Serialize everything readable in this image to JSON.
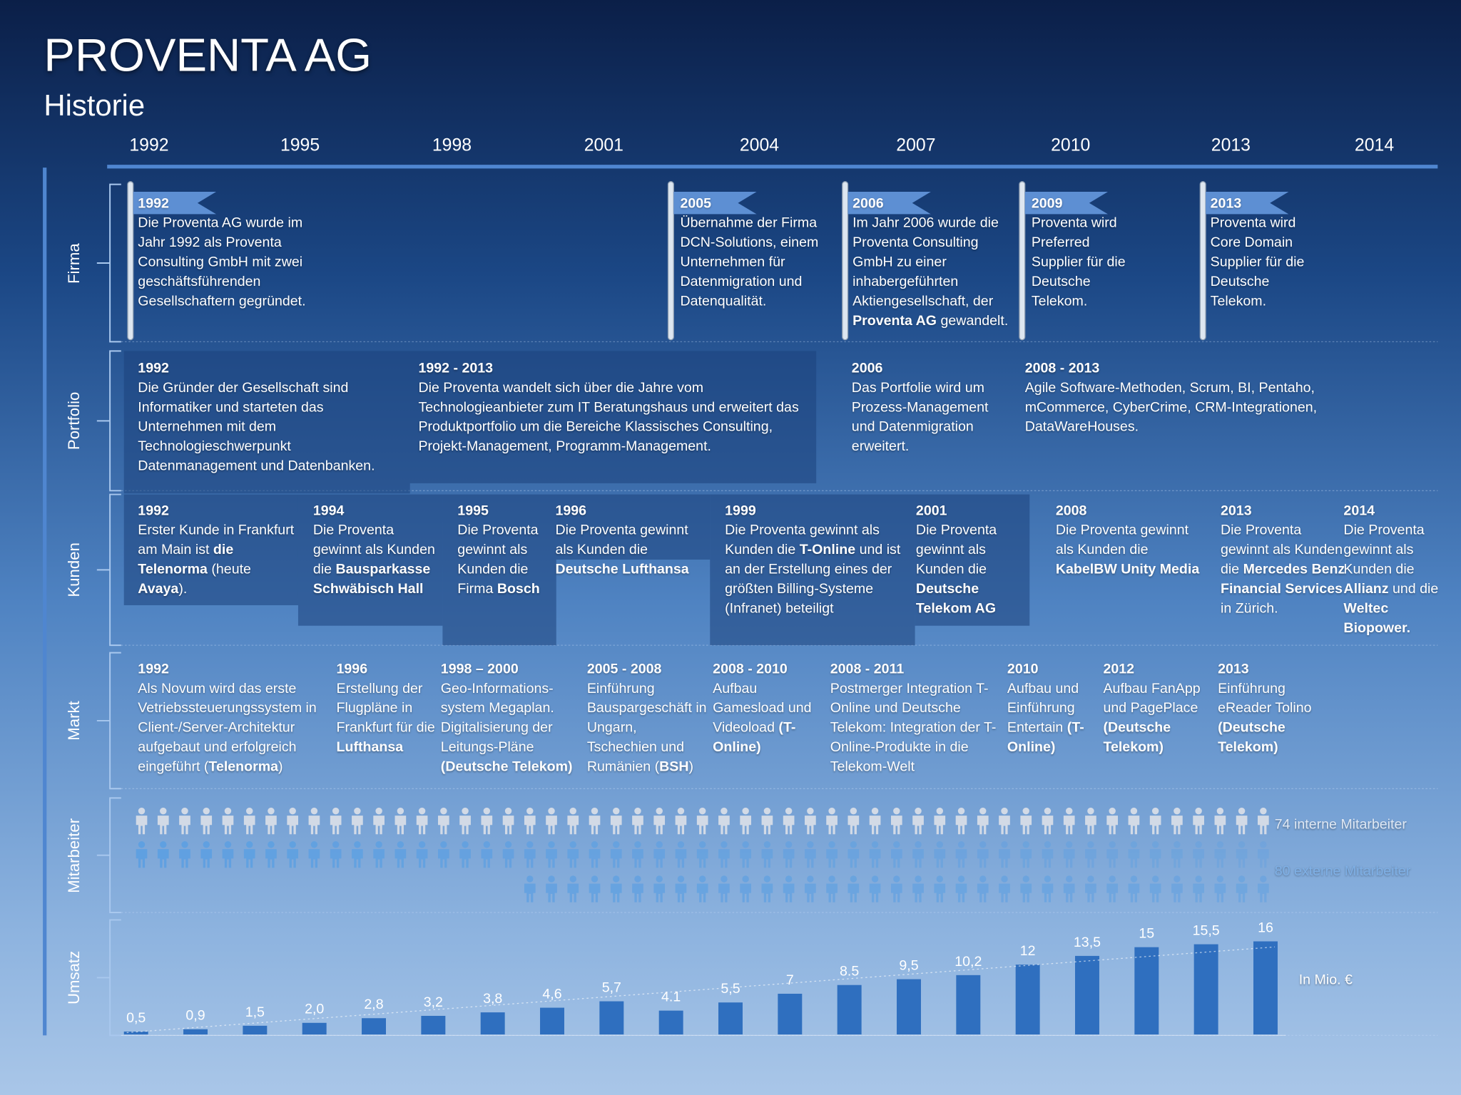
{
  "header": {
    "title": "PROVENTA AG",
    "subtitle": "Historie"
  },
  "years": [
    "1992",
    "1995",
    "1998",
    "2001",
    "2004",
    "2007",
    "2010",
    "2013",
    "2014"
  ],
  "sections": [
    {
      "label": "Firma",
      "entries": [
        {
          "year": "1992",
          "parts": [
            "Die Proventa AG wurde im Jahr 1992 als Proventa Consulting GmbH mit zwei geschäftsführenden Gesellschaftern gegründet."
          ]
        },
        {
          "year": "2005",
          "parts": [
            "Übernahme der Firma DCN-Solutions, einem Unternehmen für Datenmigration und Datenqualität."
          ]
        },
        {
          "year": "2006",
          "parts": [
            "Im Jahr 2006 wurde die Proventa Consulting GmbH zu einer inhabergeführten Aktiengesellschaft, der ",
            "Proventa AG",
            " gewandelt."
          ]
        },
        {
          "year": "2009",
          "parts": [
            "Proventa wird Preferred Supplier für die Deutsche Telekom."
          ]
        },
        {
          "year": "2013",
          "parts": [
            "Proventa wird Core Domain Supplier für die Deutsche Telekom."
          ]
        }
      ]
    },
    {
      "label": "Portfolio",
      "entries": [
        {
          "year": "1992",
          "parts": [
            "Die Gründer der Gesellschaft sind Informatiker und starteten das Unternehmen mit dem Technologieschwerpunkt Datenmanagement und Datenbanken."
          ]
        },
        {
          "year": "1992 - 2013",
          "parts": [
            "Die Proventa wandelt sich über die Jahre vom Technologieanbieter zum IT Beratungshaus und erweitert das Produktportfolio um die Bereiche Klassisches Consulting, Projekt-Management, Programm-Management."
          ]
        },
        {
          "year": "2006",
          "parts": [
            "Das Portfolie wird um Prozess-Management und Datenmigration erweitert."
          ]
        },
        {
          "year": "2008 - 2013",
          "parts": [
            "Agile Software-Methoden, Scrum, BI, Pentaho, mCommerce, CyberCrime, CRM-Integrationen, DataWareHouses."
          ]
        }
      ]
    },
    {
      "label": "Kunden",
      "entries": [
        {
          "year": "1992",
          "parts": [
            "Erster Kunde in Frankfurt am Main ist ",
            "die Telenorma",
            " (heute ",
            "Avaya",
            ")."
          ]
        },
        {
          "year": "1994",
          "parts": [
            "Die Proventa gewinnt als Kunden die ",
            "Bausparkasse Schwäbisch Hall"
          ]
        },
        {
          "year": "1995",
          "parts": [
            "Die Proventa gewinnt als Kunden die Firma ",
            "Bosch"
          ]
        },
        {
          "year": "1996",
          "parts": [
            "Die Proventa gewinnt als Kunden die ",
            "Deutsche Lufthansa"
          ]
        },
        {
          "year": "1999",
          "parts": [
            "Die Proventa gewinnt als Kunden die ",
            "T-Online",
            " und ist an der Erstellung eines der größten Billing-Systeme (Infranet) beteiligt"
          ]
        },
        {
          "year": "2001",
          "parts": [
            "Die Proventa gewinnt als Kunden die ",
            "Deutsche Telekom AG"
          ]
        },
        {
          "year": "2008",
          "parts": [
            "Die Proventa gewinnt als Kunden die ",
            "KabelBW Unity Media"
          ]
        },
        {
          "year": "2013",
          "parts": [
            "Die Proventa gewinnt als Kunden die ",
            "Mercedes Benz Financial Services",
            " in Zürich."
          ]
        },
        {
          "year": "2014",
          "parts": [
            "Die Proventa gewinnt als Kunden die ",
            "Allianz",
            " und die ",
            "Weltec Biopower."
          ]
        }
      ]
    },
    {
      "label": "Markt",
      "entries": [
        {
          "year": "1992",
          "parts": [
            "Als Novum wird das erste Vetriebssteuerungssystem in Client-/Server-Architektur aufgebaut und erfolgreich eingeführt (",
            "Telenorma",
            ")"
          ]
        },
        {
          "year": "1996",
          "parts": [
            "Erstellung der Flugpläne in Frankfurt für die ",
            "Lufthansa"
          ]
        },
        {
          "year": "1998 – 2000",
          "parts": [
            "Geo-Informations-system Megaplan. Digitalisierung  der Leitungs-Pläne ",
            "(Deutsche Telekom)"
          ]
        },
        {
          "year": "2005 - 2008",
          "parts": [
            "Einführung Bauspargeschäft in Ungarn, Tschechien und Rumänien (",
            "BSH",
            ")"
          ]
        },
        {
          "year": "2008 - 2010",
          "parts": [
            "Aufbau Gamesload und Videoload ",
            "(T-Online)"
          ]
        },
        {
          "year": "2008 - 2011",
          "parts": [
            "Postmerger Integration T-Online und Deutsche Telekom: Integration der T-Online-Produkte in die Telekom-Welt"
          ]
        },
        {
          "year": "2010",
          "parts": [
            "Aufbau  und Einführung Entertain ",
            "(T-Online)"
          ]
        },
        {
          "year": "2012",
          "parts": [
            "Aufbau FanApp und PagePlace ",
            "(Deutsche Telekom)"
          ]
        },
        {
          "year": "2013",
          "parts": [
            "Einführung eReader Tolino ",
            "(Deutsche Telekom)"
          ]
        }
      ]
    },
    {
      "label": "Mitarbeiter",
      "entries": []
    },
    {
      "label": "Umsatz",
      "entries": []
    }
  ],
  "employees": {
    "internal": "74 interne Mitarbeiter",
    "external": "80 externe Mitarbeiter"
  },
  "chart_data": {
    "type": "bar",
    "color": "#2f6fbf",
    "annotation": "In Mio. €",
    "values": [
      0.5,
      0.9,
      1.5,
      2.0,
      2.8,
      3.2,
      3.8,
      4.6,
      5.7,
      4.1,
      5.5,
      7,
      8.5,
      9.5,
      10.2,
      12,
      13.5,
      15,
      15.5,
      16
    ],
    "value_labels": [
      "0,5",
      "0,9",
      "1,5",
      "2,0",
      "2,8",
      "3,2",
      "3,8",
      "4,6",
      "5,7",
      "4.1",
      "5,5",
      "7",
      "8.5",
      "9,5",
      "10,2",
      "12",
      "13,5",
      "15",
      "15,5",
      "16"
    ]
  }
}
